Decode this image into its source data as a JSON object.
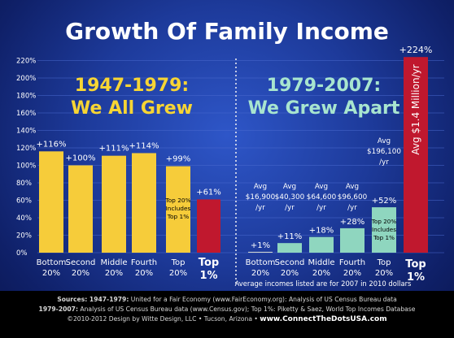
{
  "chart_data": {
    "type": "bar",
    "title": "Growth Of Family Income",
    "yticks": [
      "0%",
      "20%",
      "40%",
      "60%",
      "80%",
      "100%",
      "120%",
      "140%",
      "160%",
      "180%",
      "200%",
      "220%"
    ],
    "ylim": [
      0,
      225
    ],
    "grid": true,
    "panels": [
      {
        "title_line1": "1947-1979:",
        "title_line2": "We All Grew",
        "categories": [
          {
            "name": "Bottom 20%",
            "line1": "Bottom",
            "line2": "20%"
          },
          {
            "name": "Second 20%",
            "line1": "Second",
            "line2": "20%"
          },
          {
            "name": "Middle 20%",
            "line1": "Middle",
            "line2": "20%"
          },
          {
            "name": "Fourth 20%",
            "line1": "Fourth",
            "line2": "20%"
          },
          {
            "name": "Top 20%",
            "line1": "Top",
            "line2": "20%"
          },
          {
            "name": "Top 1%",
            "line1": "Top",
            "line2": "1%"
          }
        ],
        "values": [
          116,
          100,
          111,
          114,
          99,
          61
        ],
        "value_labels": [
          "+116%",
          "+100%",
          "+111%",
          "+114%",
          "+99%",
          "+61%"
        ],
        "note": [
          "Top 20%",
          "Includes",
          "Top 1%"
        ]
      },
      {
        "title_line1": "1979-2007:",
        "title_line2": "We Grew Apart",
        "categories": [
          {
            "name": "Bottom 20%",
            "line1": "Bottom",
            "line2": "20%"
          },
          {
            "name": "Second 20%",
            "line1": "Second",
            "line2": "20%"
          },
          {
            "name": "Middle 20%",
            "line1": "Middle",
            "line2": "20%"
          },
          {
            "name": "Fourth 20%",
            "line1": "Fourth",
            "line2": "20%"
          },
          {
            "name": "Top 20%",
            "line1": "Top",
            "line2": "20%"
          },
          {
            "name": "Top 1%",
            "line1": "Top",
            "line2": "1%"
          }
        ],
        "values": [
          1,
          11,
          18,
          28,
          52,
          224
        ],
        "value_labels": [
          "+1%",
          "+11%",
          "+18%",
          "+28%",
          "+52%",
          "+224%"
        ],
        "avg_incomes": [
          [
            "Avg",
            "$16,900",
            "/yr"
          ],
          [
            "Avg",
            "$40,300",
            "/yr"
          ],
          [
            "Avg",
            "$64,600",
            "/yr"
          ],
          [
            "Avg",
            "$96,600",
            "/yr"
          ],
          [
            "Avg",
            "$196,100",
            "/yr"
          ]
        ],
        "top1_avg": "Avg $1.4 Million/yr",
        "note": [
          "Top 20%",
          "Includes",
          "Top 1%"
        ],
        "footnote": "Average incomes listed are for 2007 in 2010 dollars"
      }
    ]
  },
  "colors": {
    "background": "#1d3a9a",
    "yellow_bar": "#f6cc3a",
    "yellow_label": "#f7d534",
    "red_bar": "#c0182e",
    "red_bar_label": "#ffffff",
    "teal_bar": "#8fd6bf",
    "teal_label": "#a8e5cf",
    "gray_bar": "#cfd3cf",
    "grid": "#4a6ad0",
    "text": "#ffffff"
  },
  "footer": {
    "line1_bold": "Sources: 1947-1979:",
    "line1": " United for a Fair Economy (www.FairEconomy.org): Analysis of US Census Bureau data",
    "line2_bold": "1979-2007:",
    "line2": " Analysis of US Census Bureau data (www.Census.gov); Top 1%: Piketty & Saez, World Top Incomes Database",
    "line3": "©2010-2012 Design by Witte Design, LLC • Tucson, Arizona • ",
    "line3_bold": "www.ConnectTheDotsUSA.com"
  }
}
